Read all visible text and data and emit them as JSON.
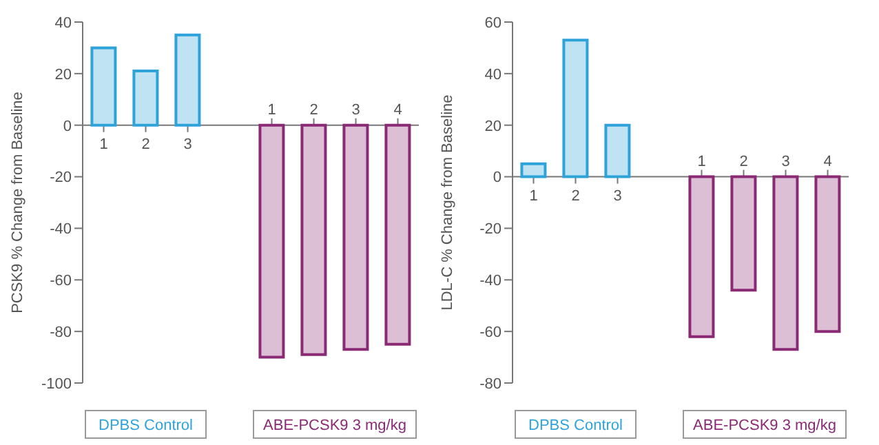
{
  "chart_data": [
    {
      "type": "bar",
      "ylabel": "PCSK9 % Change from Baseline",
      "categories": [
        "1",
        "2",
        "3",
        null,
        "1",
        "2",
        "3",
        "4"
      ],
      "ylim": [
        -100,
        40
      ],
      "yticks": [
        -100,
        -80,
        -60,
        -40,
        -20,
        0,
        20,
        40
      ],
      "series": [
        {
          "name": "DPBS Control",
          "color": "#2ea3da",
          "values": [
            30,
            21,
            35,
            null,
            null,
            null,
            null,
            null
          ]
        },
        {
          "name": "ABE-PCSK9 3 mg/kg",
          "color": "#8b2a74",
          "values": [
            null,
            null,
            null,
            null,
            -90,
            -89,
            -87,
            -85
          ]
        }
      ]
    },
    {
      "type": "bar",
      "ylabel": "LDL-C % Change from Baseline",
      "categories": [
        "1",
        "2",
        "3",
        null,
        "1",
        "2",
        "3",
        "4"
      ],
      "ylim": [
        -80,
        60
      ],
      "yticks": [
        -80,
        -60,
        -40,
        -20,
        0,
        20,
        40,
        60
      ],
      "series": [
        {
          "name": "DPBS Control",
          "color": "#2ea3da",
          "values": [
            5,
            53,
            20,
            null,
            null,
            null,
            null,
            null
          ]
        },
        {
          "name": "ABE-PCSK9 3 mg/kg",
          "color": "#8b2a74",
          "values": [
            null,
            null,
            null,
            null,
            -62,
            -44,
            -67,
            -60
          ]
        }
      ]
    }
  ]
}
